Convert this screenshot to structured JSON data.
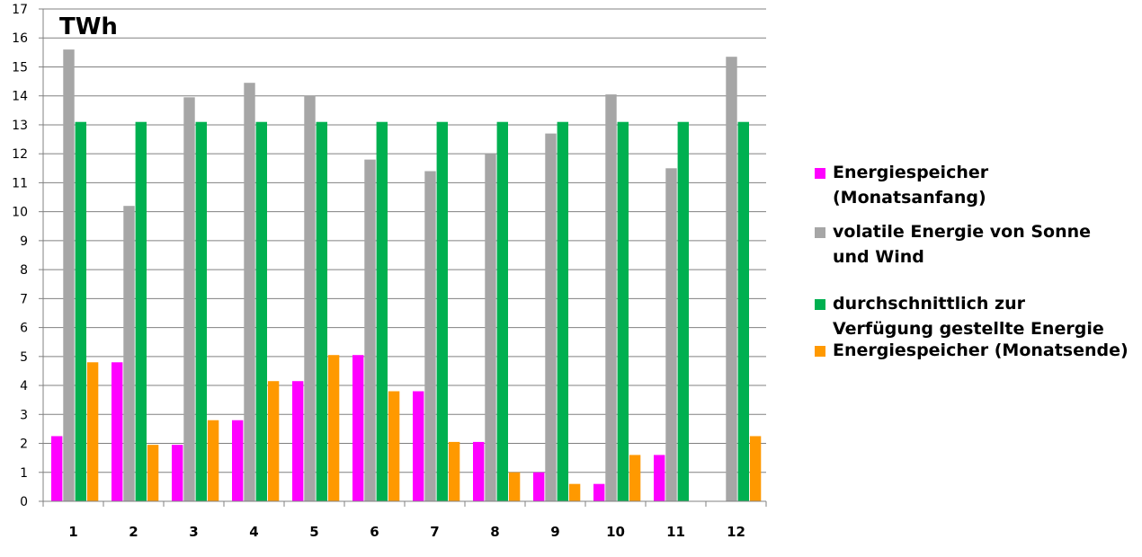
{
  "chart_data": {
    "type": "bar",
    "unit_label": "TWh",
    "categories": [
      "1",
      "2",
      "3",
      "4",
      "5",
      "6",
      "7",
      "8",
      "9",
      "10",
      "11",
      "12"
    ],
    "ylim": [
      0,
      17
    ],
    "yticks": [
      "0",
      "1",
      "2",
      "3",
      "4",
      "5",
      "6",
      "7",
      "8",
      "9",
      "10",
      "11",
      "12",
      "13",
      "14",
      "15",
      "16",
      "17"
    ],
    "grid": true,
    "legend_position": "right",
    "series": [
      {
        "name": "Energiespeicher (Monatsanfang)",
        "color": "#ff00ff",
        "values": [
          2.25,
          4.8,
          1.95,
          2.8,
          4.15,
          5.05,
          3.8,
          2.05,
          1.0,
          0.6,
          1.6,
          0
        ]
      },
      {
        "name": "volatile Energie von Sonne und Wind",
        "color": "#a6a6a6",
        "values": [
          15.6,
          10.2,
          13.95,
          14.45,
          14.0,
          11.8,
          11.4,
          12.0,
          12.7,
          14.05,
          11.5,
          15.35
        ]
      },
      {
        "name": "durchschnittlich zur Verfügung gestellte Energie",
        "color": "#00b050",
        "values": [
          13.1,
          13.1,
          13.1,
          13.1,
          13.1,
          13.1,
          13.1,
          13.1,
          13.1,
          13.1,
          13.1,
          13.1
        ]
      },
      {
        "name": "Energiespeicher (Monatsende)",
        "color": "#ff9900",
        "values": [
          4.8,
          1.95,
          2.8,
          4.15,
          5.05,
          3.8,
          2.05,
          1.0,
          0.6,
          1.6,
          0,
          2.25
        ]
      }
    ]
  }
}
